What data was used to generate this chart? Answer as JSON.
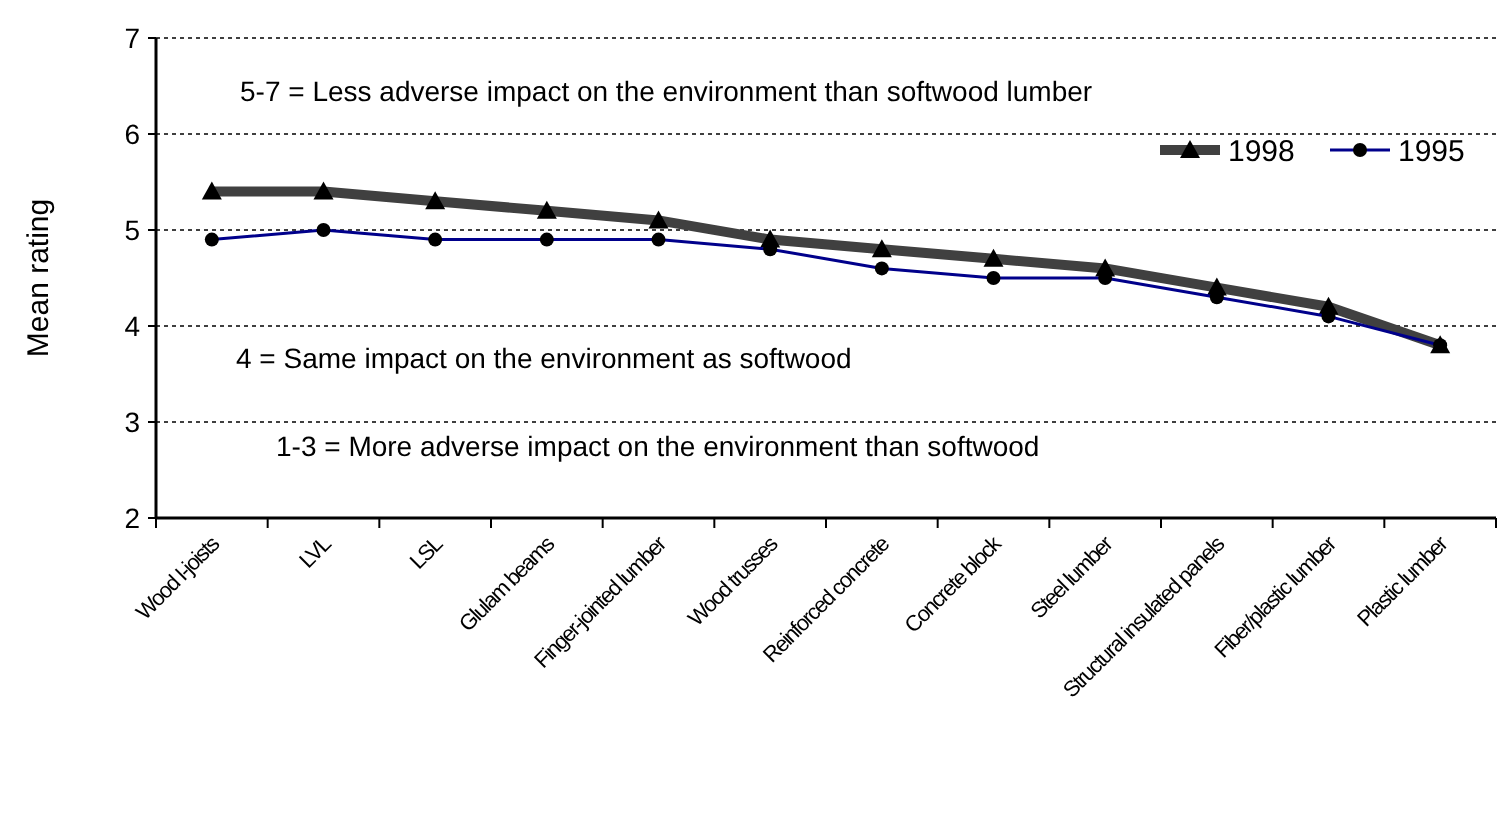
{
  "chart_data": {
    "type": "line",
    "ylabel": "Mean rating",
    "categories": [
      "Wood I-joists",
      "LVL",
      "LSL",
      "Glulam beams",
      "Finger-jointed lumber",
      "Wood trusses",
      "Reinforced concrete",
      "Concrete block",
      "Steel lumber",
      "Structural insulated panels",
      "Fiber/plastic lumber",
      "Plastic lumber"
    ],
    "series": [
      {
        "name": "1998",
        "color": "#404040",
        "marker": "triangle",
        "values": [
          5.4,
          5.4,
          5.3,
          5.2,
          5.1,
          4.9,
          4.8,
          4.7,
          4.6,
          4.4,
          4.2,
          3.8
        ]
      },
      {
        "name": "1995",
        "color": "#00008b",
        "marker": "circle",
        "values": [
          4.9,
          5.0,
          4.9,
          4.9,
          4.9,
          4.8,
          4.6,
          4.5,
          4.5,
          4.3,
          4.1,
          3.8
        ]
      }
    ],
    "ylim": [
      2,
      7
    ],
    "yticks": [
      2,
      3,
      4,
      5,
      6,
      7
    ],
    "grid": "y",
    "legend": "top right",
    "annotations": [
      "5-7 = Less adverse impact on the environment than softwood lumber",
      "4 = Same impact on the environment as softwood",
      "1-3 = More adverse impact on the environment than softwood"
    ]
  }
}
